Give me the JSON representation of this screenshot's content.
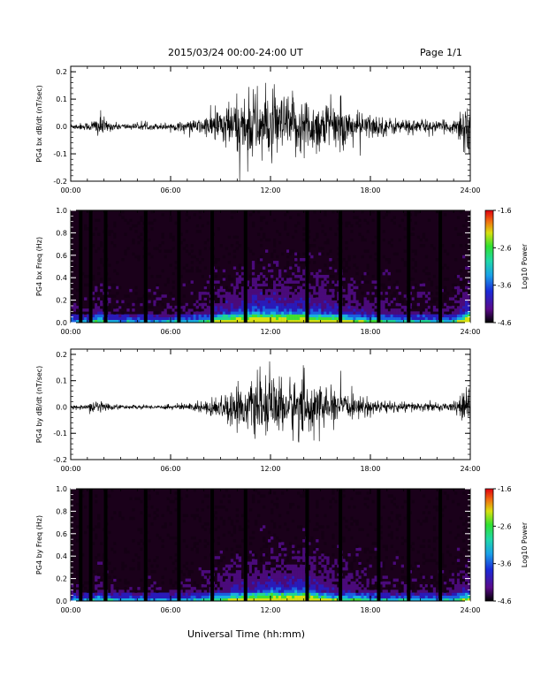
{
  "header": {
    "title": "2015/03/24  00:00-24:00 UT",
    "page": "Page 1/1"
  },
  "footer": {
    "xlabel": "Universal Time (hh:mm)"
  },
  "colors": {
    "trace": "#000000",
    "colormap": [
      "#2a002a",
      "#5a0a8a",
      "#1a2ad8",
      "#1aa0e8",
      "#20d8a8",
      "#30e030",
      "#d8e010",
      "#f07010",
      "#e00010"
    ]
  },
  "chart_data": [
    {
      "id": "bx-trace",
      "type": "line",
      "ylabel": "PG4 bx dB/dt (nT/sec)",
      "ylim": [
        -0.2,
        0.22
      ],
      "yticks": [
        "0.2",
        "0.1",
        "0.0",
        "-0.1",
        "-0.2"
      ],
      "xticks": [
        "00:00",
        "06:00",
        "12:00",
        "18:00",
        "24:00"
      ],
      "xlim_hours": [
        0,
        24
      ],
      "envelope": {
        "hours": [
          0,
          1,
          1.8,
          2.2,
          3,
          5,
          6,
          7,
          8,
          9,
          10,
          11,
          12,
          13,
          14,
          15,
          16,
          17,
          18,
          19,
          20,
          21,
          22,
          23,
          23.6,
          24
        ],
        "amplitude": [
          0.012,
          0.015,
          0.05,
          0.02,
          0.012,
          0.012,
          0.015,
          0.02,
          0.035,
          0.08,
          0.11,
          0.14,
          0.13,
          0.12,
          0.12,
          0.1,
          0.09,
          0.06,
          0.05,
          0.035,
          0.03,
          0.03,
          0.02,
          0.025,
          0.1,
          0.14
        ]
      }
    },
    {
      "id": "bx-spectrogram",
      "type": "heatmap",
      "ylabel": "PG4 bx Freq (Hz)",
      "ylim": [
        0,
        1.0
      ],
      "yticks": [
        "1.0",
        "0.8",
        "0.6",
        "0.4",
        "0.2",
        "0.0"
      ],
      "xticks": [
        "00:00",
        "06:00",
        "12:00",
        "18:00",
        "24:00"
      ],
      "colorbar": {
        "label": "Log10 Power",
        "range": [
          -4.6,
          -1.6
        ],
        "ticks": [
          "-1.6",
          "-2.6",
          "-3.6",
          "-4.6"
        ]
      },
      "data_gaps_hours": [
        0.6,
        1.2,
        2.1,
        4.5,
        6.5,
        8.5,
        10.5,
        14.2,
        16.2,
        18.5,
        20.3,
        22.2
      ]
    },
    {
      "id": "by-trace",
      "type": "line",
      "ylabel": "PG4 by dB/dt (nT/sec)",
      "ylim": [
        -0.2,
        0.22
      ],
      "yticks": [
        "0.2",
        "0.1",
        "0.0",
        "-0.1",
        "-0.2"
      ],
      "xticks": [
        "00:00",
        "06:00",
        "12:00",
        "18:00",
        "24:00"
      ],
      "xlim_hours": [
        0,
        24
      ],
      "envelope": {
        "hours": [
          0,
          1,
          1.8,
          2.2,
          3,
          5,
          6,
          7,
          8,
          9,
          10,
          11,
          12,
          13,
          14,
          15,
          16,
          17,
          18,
          19,
          20,
          21,
          22,
          23,
          23.6,
          24
        ],
        "amplitude": [
          0.008,
          0.01,
          0.035,
          0.015,
          0.008,
          0.008,
          0.01,
          0.015,
          0.025,
          0.05,
          0.08,
          0.1,
          0.12,
          0.11,
          0.13,
          0.08,
          0.06,
          0.04,
          0.035,
          0.025,
          0.02,
          0.02,
          0.015,
          0.02,
          0.06,
          0.08
        ]
      }
    },
    {
      "id": "by-spectrogram",
      "type": "heatmap",
      "ylabel": "PG4 by Freq (Hz)",
      "ylim": [
        0,
        1.0
      ],
      "yticks": [
        "1.0",
        "0.8",
        "0.6",
        "0.4",
        "0.2",
        "0.0"
      ],
      "xticks": [
        "00:00",
        "06:00",
        "12:00",
        "18:00",
        "24:00"
      ],
      "colorbar": {
        "label": "Log10 Power",
        "range": [
          -4.6,
          -1.6
        ],
        "ticks": [
          "-1.6",
          "-2.6",
          "-3.6",
          "-4.6"
        ]
      },
      "data_gaps_hours": [
        0.6,
        1.2,
        2.1,
        4.5,
        6.5,
        8.5,
        10.5,
        14.2,
        16.2,
        18.5,
        20.3,
        22.2
      ]
    }
  ]
}
